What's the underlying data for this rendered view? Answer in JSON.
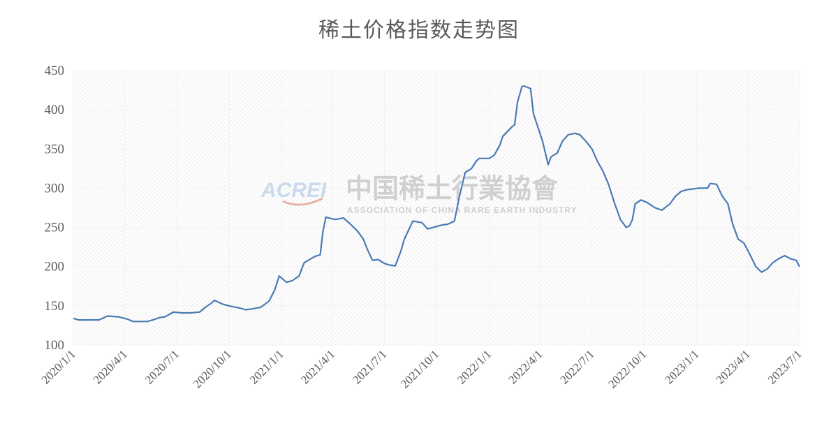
{
  "chart_data": {
    "type": "line",
    "title": "稀土价格指数走势图",
    "xlabel": "",
    "ylabel": "",
    "ylim": [
      100,
      450
    ],
    "yticks": [
      100,
      150,
      200,
      250,
      300,
      350,
      400,
      450
    ],
    "xlim": [
      "2020-01-01",
      "2023-07-01"
    ],
    "xtick_labels": [
      "2020/1/1",
      "2020/4/1",
      "2020/7/1",
      "2020/10/1",
      "2021/1/1",
      "2021/4/1",
      "2021/7/1",
      "2021/10/1",
      "2022/1/1",
      "2022/4/1",
      "2022/7/1",
      "2022/10/1",
      "2023/1/1",
      "2023/4/1",
      "2023/7/1"
    ],
    "xtick_dates": [
      "2020-01-01",
      "2020-04-01",
      "2020-07-01",
      "2020-10-01",
      "2021-01-01",
      "2021-04-01",
      "2021-07-01",
      "2021-10-01",
      "2022-01-01",
      "2022-04-01",
      "2022-07-01",
      "2022-10-01",
      "2023-01-01",
      "2023-04-01",
      "2023-07-01"
    ],
    "grid": true,
    "line_color": "#4a7ab5",
    "series": [
      {
        "x": [
          "2020-01-01",
          "2020-01-10",
          "2020-02-15",
          "2020-03-01",
          "2020-03-20",
          "2020-04-05",
          "2020-04-15",
          "2020-05-10",
          "2020-05-20",
          "2020-06-01",
          "2020-06-10",
          "2020-06-20",
          "2020-06-25",
          "2020-07-10",
          "2020-07-25",
          "2020-08-10",
          "2020-08-20",
          "2020-08-30",
          "2020-09-05",
          "2020-09-20",
          "2020-10-01",
          "2020-10-20",
          "2020-10-30",
          "2020-11-10",
          "2020-11-25",
          "2020-12-01",
          "2020-12-10",
          "2020-12-20",
          "2020-12-28",
          "2021-01-10",
          "2021-01-20",
          "2021-02-01",
          "2021-02-10",
          "2021-03-01",
          "2021-03-10",
          "2021-03-15",
          "2021-03-20",
          "2021-04-05",
          "2021-04-20",
          "2021-05-01",
          "2021-05-15",
          "2021-05-25",
          "2021-06-01",
          "2021-06-10",
          "2021-06-20",
          "2021-07-01",
          "2021-07-10",
          "2021-07-20",
          "2021-07-30",
          "2021-08-05",
          "2021-08-20",
          "2021-09-05",
          "2021-09-15",
          "2021-10-05",
          "2021-10-10",
          "2021-10-20",
          "2021-11-01",
          "2021-11-10",
          "2021-11-20",
          "2021-12-01",
          "2021-12-10",
          "2021-12-15",
          "2022-01-01",
          "2022-01-10",
          "2022-01-20",
          "2022-01-25",
          "2022-02-10",
          "2022-02-15",
          "2022-02-20",
          "2022-02-28",
          "2022-03-05",
          "2022-03-15",
          "2022-03-20",
          "2022-04-05",
          "2022-04-15",
          "2022-04-20",
          "2022-05-01",
          "2022-05-10",
          "2022-05-20",
          "2022-06-01",
          "2022-06-10",
          "2022-06-20",
          "2022-07-01",
          "2022-07-10",
          "2022-07-20",
          "2022-07-30",
          "2022-08-10",
          "2022-08-20",
          "2022-08-30",
          "2022-09-05",
          "2022-09-10",
          "2022-09-15",
          "2022-09-25",
          "2022-10-05",
          "2022-10-20",
          "2022-11-01",
          "2022-11-15",
          "2022-11-25",
          "2022-12-05",
          "2022-12-15",
          "2023-01-05",
          "2023-01-20",
          "2023-01-25",
          "2023-02-05",
          "2023-02-15",
          "2023-02-25",
          "2023-03-05",
          "2023-03-15",
          "2023-03-25",
          "2023-04-05",
          "2023-04-15",
          "2023-04-25",
          "2023-05-05",
          "2023-05-15",
          "2023-05-25",
          "2023-06-05",
          "2023-06-15",
          "2023-06-25",
          "2023-07-01"
        ],
        "y": [
          134,
          132,
          132,
          137,
          136,
          133,
          130,
          130,
          132,
          135,
          136,
          140,
          142,
          141,
          141,
          142,
          148,
          153,
          157,
          152,
          150,
          147,
          145,
          146,
          148,
          151,
          156,
          170,
          188,
          180,
          182,
          188,
          205,
          213,
          215,
          245,
          263,
          260,
          262,
          255,
          245,
          235,
          222,
          208,
          209,
          204,
          202,
          201,
          220,
          235,
          258,
          256,
          248,
          252,
          253,
          254,
          258,
          290,
          320,
          325,
          335,
          338,
          338,
          342,
          355,
          366,
          378,
          381,
          410,
          430,
          430,
          427,
          395,
          360,
          330,
          340,
          345,
          360,
          368,
          370,
          368,
          360,
          350,
          335,
          322,
          305,
          280,
          260,
          250,
          252,
          260,
          280,
          285,
          282,
          275,
          272,
          280,
          290,
          296,
          298,
          300,
          300,
          306,
          305,
          290,
          280,
          255,
          235,
          230,
          215,
          200,
          193,
          197,
          205,
          210,
          214,
          210,
          208,
          200
        ]
      }
    ]
  },
  "watermark": {
    "logo_text": "ACREI",
    "cn_text": "中国稀土行業協會",
    "en_text": "ASSOCIATION OF CHINA RARE EARTH INDUSTRY"
  }
}
